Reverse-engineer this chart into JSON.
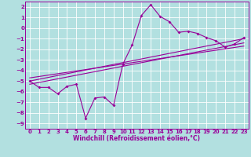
{
  "title": "",
  "xlabel": "Windchill (Refroidissement éolien,°C)",
  "ylabel": "",
  "bg_color": "#b2e0e0",
  "line_color": "#990099",
  "grid_color": "#ffffff",
  "xlim": [
    -0.5,
    23.5
  ],
  "ylim": [
    -9.5,
    2.5
  ],
  "yticks": [
    2,
    1,
    0,
    -1,
    -2,
    -3,
    -4,
    -5,
    -6,
    -7,
    -8,
    -9
  ],
  "xticks": [
    0,
    1,
    2,
    3,
    4,
    5,
    6,
    7,
    8,
    9,
    10,
    11,
    12,
    13,
    14,
    15,
    16,
    17,
    18,
    19,
    20,
    21,
    22,
    23
  ],
  "main_line_x": [
    0,
    1,
    2,
    3,
    4,
    5,
    6,
    7,
    8,
    9,
    10,
    11,
    12,
    13,
    14,
    15,
    16,
    17,
    18,
    19,
    20,
    21,
    22,
    23
  ],
  "main_line_y": [
    -5.0,
    -5.6,
    -5.6,
    -6.2,
    -5.5,
    -5.3,
    -8.5,
    -6.6,
    -6.5,
    -7.3,
    -3.4,
    -1.6,
    1.2,
    2.2,
    1.1,
    0.6,
    -0.4,
    -0.3,
    -0.5,
    -0.9,
    -1.2,
    -1.8,
    -1.5,
    -0.9
  ],
  "reg_line1_x": [
    0,
    23
  ],
  "reg_line1_y": [
    -5.0,
    -1.0
  ],
  "reg_line2_x": [
    0,
    23
  ],
  "reg_line2_y": [
    -5.3,
    -1.4
  ],
  "reg_line3_x": [
    0,
    23
  ],
  "reg_line3_y": [
    -4.7,
    -1.7
  ]
}
